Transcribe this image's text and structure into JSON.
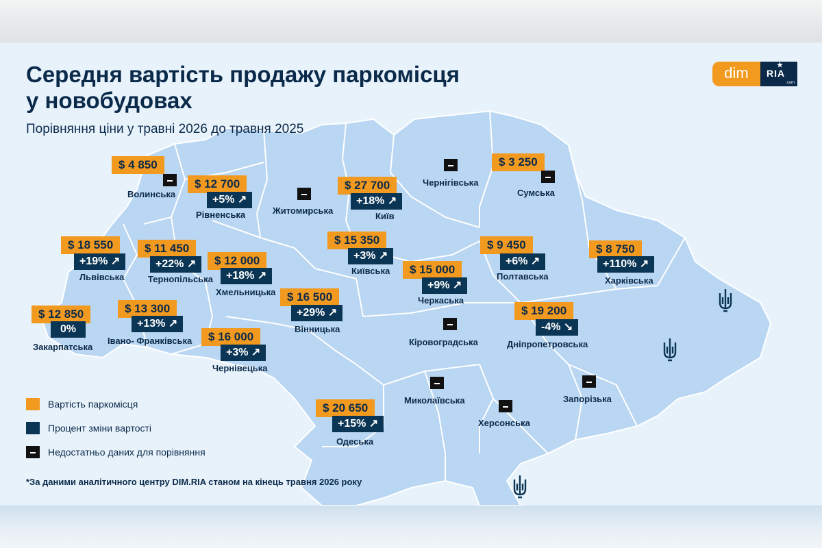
{
  "title_line1": "Середня вартість продажу паркомісця",
  "title_line2": "у новобудовах",
  "subtitle": "Порівняння ціни у травні 2026 до травня 2025",
  "logo": {
    "dim": "dim",
    "ria": "RIA",
    "com": ".com"
  },
  "legend": {
    "price": "Вартість паркомісця",
    "change": "Процент зміни вартості",
    "nodata": "Недостатньо даних для порівняння"
  },
  "footnote": "*За даними аналітичного центру DIM.RIA станом на кінець травня 2026 року",
  "colors": {
    "price": "#f29a1f",
    "change": "#0b3554",
    "nodata": "#111111",
    "map": "#b9d6f2",
    "background": "#e8f2fb",
    "text": "#0b2a4a"
  },
  "icons": {
    "up": "arrow-up-right-icon",
    "down": "arrow-down-right-icon",
    "trident": "trident-icon"
  },
  "regions": {
    "volynska": {
      "name": "Волинська",
      "price": "$ 4 850",
      "change": null,
      "direction": "none"
    },
    "rivnenska": {
      "name": "Рівненська",
      "price": "$ 12 700",
      "change": "+5%",
      "direction": "up"
    },
    "zhytomyrska": {
      "name": "Житомирська",
      "price": null,
      "change": null,
      "direction": "none"
    },
    "kyiv": {
      "name": "Київ",
      "price": "$ 27 700",
      "change": "+18%",
      "direction": "up"
    },
    "chernihivska": {
      "name": "Чернігівська",
      "price": null,
      "change": null,
      "direction": "none"
    },
    "sumska": {
      "name": "Сумська",
      "price": "$ 3 250",
      "change": null,
      "direction": "none"
    },
    "lvivska": {
      "name": "Львівська",
      "price": "$ 18 550",
      "change": "+19%",
      "direction": "up"
    },
    "ternopilska": {
      "name": "Тернопільська",
      "price": "$ 11 450",
      "change": "+22%",
      "direction": "up"
    },
    "khmelnytska": {
      "name": "Хмельницька",
      "price": "$ 12 000",
      "change": "+18%",
      "direction": "up"
    },
    "kyivska": {
      "name": "Київська",
      "price": "$ 15 350",
      "change": "+3%",
      "direction": "up"
    },
    "cherkaska": {
      "name": "Черкаська",
      "price": "$ 15 000",
      "change": "+9%",
      "direction": "up"
    },
    "poltavska": {
      "name": "Полтавська",
      "price": "$ 9 450",
      "change": "+6%",
      "direction": "up"
    },
    "kharkivska": {
      "name": "Харківська",
      "price": "$ 8 750",
      "change": "+110%",
      "direction": "up"
    },
    "zakarpatska": {
      "name": "Закарпатська",
      "price": "$ 12 850",
      "change": "0%",
      "direction": "none"
    },
    "ivanofrankivska": {
      "name": "Івано- Франківська",
      "price": "$ 13 300",
      "change": "+13%",
      "direction": "up"
    },
    "vinnytska": {
      "name": "Вінницька",
      "price": "$ 16 500",
      "change": "+29%",
      "direction": "up"
    },
    "chernivetska": {
      "name": "Чернівецька",
      "price": "$ 16 000",
      "change": "+3%",
      "direction": "up"
    },
    "kirovohradska": {
      "name": "Кіровоградська",
      "price": null,
      "change": null,
      "direction": "none"
    },
    "dnipropetrovska": {
      "name": "Дніпропетровська",
      "price": "$ 19 200",
      "change": "-4%",
      "direction": "down"
    },
    "mykolaivska": {
      "name": "Миколаївська",
      "price": null,
      "change": null,
      "direction": "none"
    },
    "zaporizka": {
      "name": "Запорізька",
      "price": null,
      "change": null,
      "direction": "none"
    },
    "khersonska": {
      "name": "Херсонська",
      "price": null,
      "change": null,
      "direction": "none"
    },
    "odeska": {
      "name": "Одеська",
      "price": "$ 20 650",
      "change": "+15%",
      "direction": "up"
    }
  }
}
